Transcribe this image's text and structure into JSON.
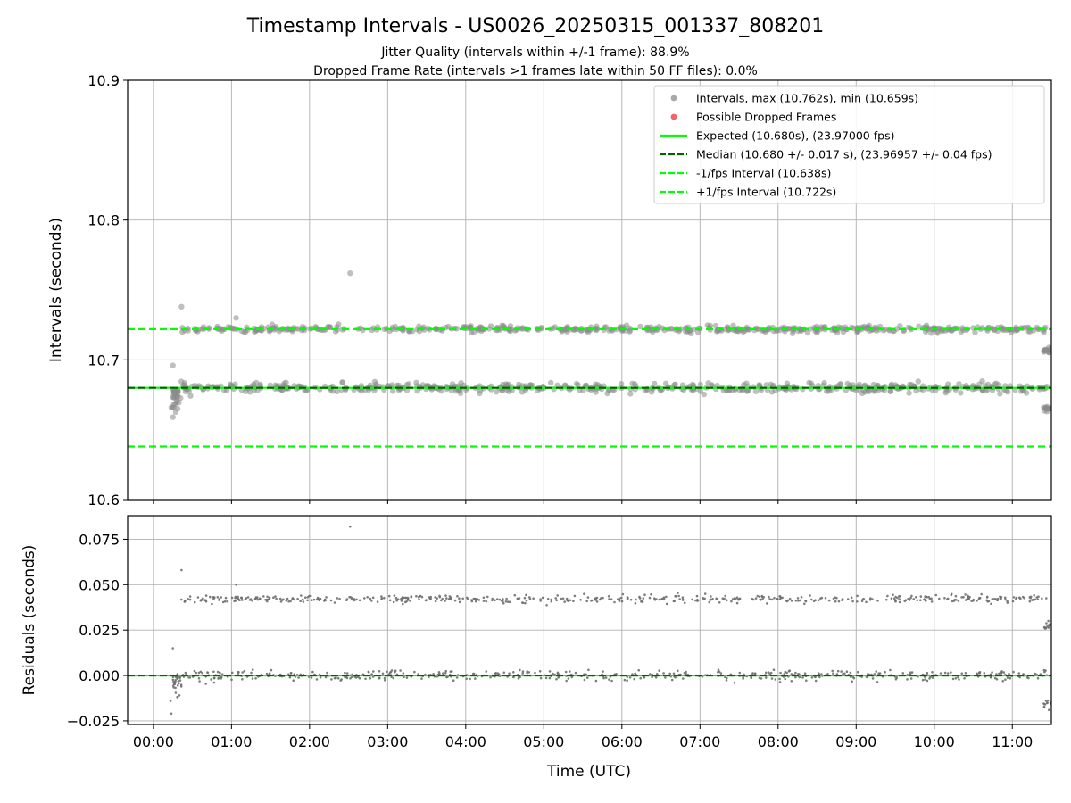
{
  "figure": {
    "title": "Timestamp Intervals - US0026_20250315_001337_808201",
    "subtitle_1": "Jitter Quality (intervals within +/-1 frame): 88.9%",
    "subtitle_2": "Dropped Frame Rate (intervals >1 frames late within 50 FF files): 0.0%",
    "xlabel": "Time (UTC)"
  },
  "colors": {
    "points": "#808080",
    "dropped": "#ee4444",
    "expected": "#00ff00",
    "median": "#006400",
    "grid": "#b0b0b0"
  },
  "legend": {
    "placement": "top-right",
    "items": [
      {
        "label": "Intervals, max (10.762s), min (10.659s)",
        "kind": "marker",
        "color": "#a0a0a0"
      },
      {
        "label": "Possible Dropped Frames",
        "kind": "marker",
        "color": "#ee5555"
      },
      {
        "label": "Expected (10.680s), (23.97000 fps)",
        "kind": "solid",
        "color": "#00ff00"
      },
      {
        "label": "Median (10.680 +/- 0.017 s), (23.96957 +/- 0.04 fps)",
        "kind": "dashed",
        "color": "#006400"
      },
      {
        "label": "-1/fps Interval (10.638s)",
        "kind": "dashed",
        "color": "#00ff00"
      },
      {
        "label": "+1/fps Interval (10.722s)",
        "kind": "dashed",
        "color": "#00ff00"
      }
    ]
  },
  "chart_data": [
    {
      "type": "scatter",
      "name": "intervals",
      "ylabel": "Intervals (seconds)",
      "x_unit": "hours UTC",
      "xlim": [
        -0.33,
        11.5
      ],
      "ylim": [
        10.6,
        10.9
      ],
      "y_ticks": [
        "10.6",
        "10.7",
        "10.8",
        "10.9"
      ],
      "x_ticks": [
        "00:00",
        "01:00",
        "02:00",
        "03:00",
        "04:00",
        "05:00",
        "06:00",
        "07:00",
        "08:00",
        "09:00",
        "10:00",
        "11:00"
      ],
      "grid": true,
      "bands": [
        {
          "center": 10.68,
          "spread": 0.003,
          "x_start": 0.35,
          "x_end": 11.45
        },
        {
          "center": 10.722,
          "spread": 0.002,
          "x_start": 0.35,
          "x_end": 11.45
        }
      ],
      "reference_lines": [
        {
          "label": "Expected",
          "y": 10.68,
          "style": "solid"
        },
        {
          "label": "Median",
          "y": 10.68,
          "style": "dashed"
        },
        {
          "label": "-1/fps Interval",
          "y": 10.638,
          "style": "dashed"
        },
        {
          "label": "+1/fps Interval",
          "y": 10.722,
          "style": "dashed"
        }
      ],
      "notable_points": [
        {
          "x": 2.52,
          "y": 10.762
        },
        {
          "x": 0.36,
          "y": 10.738
        },
        {
          "x": 0.25,
          "y": 10.696
        },
        {
          "x": 0.25,
          "y": 10.659
        },
        {
          "x": 0.23,
          "y": 10.666
        },
        {
          "x": 1.06,
          "y": 10.73
        },
        {
          "x": 11.45,
          "y": 10.707
        },
        {
          "x": 11.45,
          "y": 10.665
        }
      ]
    },
    {
      "type": "scatter",
      "name": "residuals",
      "ylabel": "Residuals (seconds)",
      "xlim": [
        -0.33,
        11.5
      ],
      "ylim": [
        -0.027,
        0.088
      ],
      "y_ticks": [
        "−0.025",
        "0.000",
        "0.025",
        "0.050",
        "0.075"
      ],
      "x_ticks": [
        "00:00",
        "01:00",
        "02:00",
        "03:00",
        "04:00",
        "05:00",
        "06:00",
        "07:00",
        "08:00",
        "09:00",
        "10:00",
        "11:00"
      ],
      "grid": true,
      "bands": [
        {
          "center": 0.0,
          "spread": 0.0025,
          "x_start": 0.3,
          "x_end": 11.45
        },
        {
          "center": 0.042,
          "spread": 0.002,
          "x_start": 0.35,
          "x_end": 11.45
        }
      ],
      "reference_lines": [
        {
          "label": "zero",
          "y": 0.0,
          "style": "solid"
        },
        {
          "label": "median",
          "y": 0.0,
          "style": "dashed"
        }
      ],
      "notable_points": [
        {
          "x": 2.52,
          "y": 0.082
        },
        {
          "x": 0.36,
          "y": 0.058
        },
        {
          "x": 0.25,
          "y": 0.015
        },
        {
          "x": 0.23,
          "y": -0.021
        },
        {
          "x": 0.22,
          "y": -0.014
        },
        {
          "x": 1.06,
          "y": 0.05
        },
        {
          "x": 11.45,
          "y": 0.027
        },
        {
          "x": 11.45,
          "y": -0.015
        }
      ]
    }
  ]
}
